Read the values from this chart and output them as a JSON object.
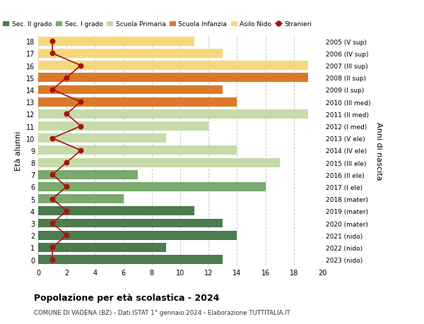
{
  "ages": [
    18,
    17,
    16,
    15,
    14,
    13,
    12,
    11,
    10,
    9,
    8,
    7,
    6,
    5,
    4,
    3,
    2,
    1,
    0
  ],
  "years": [
    "2005 (V sup)",
    "2006 (IV sup)",
    "2007 (III sup)",
    "2008 (II sup)",
    "2009 (I sup)",
    "2010 (III med)",
    "2011 (II med)",
    "2012 (I med)",
    "2013 (V ele)",
    "2014 (IV ele)",
    "2015 (III ele)",
    "2016 (II ele)",
    "2017 (I ele)",
    "2018 (mater)",
    "2019 (mater)",
    "2020 (mater)",
    "2021 (nido)",
    "2022 (nido)",
    "2023 (nido)"
  ],
  "bar_values": [
    13,
    9,
    14,
    13,
    11,
    6,
    16,
    7,
    17,
    14,
    9,
    12,
    19,
    14,
    13,
    19,
    19,
    13,
    11
  ],
  "bar_colors": [
    "#4a7c4e",
    "#4a7c4e",
    "#4a7c4e",
    "#4a7c4e",
    "#4a7c4e",
    "#7aaa6e",
    "#7aaa6e",
    "#7aaa6e",
    "#c5dba8",
    "#c5dba8",
    "#c5dba8",
    "#c5dba8",
    "#c5dba8",
    "#d97a2a",
    "#d97a2a",
    "#d97a2a",
    "#f5d87a",
    "#f5d87a",
    "#f5d87a"
  ],
  "stranieri": [
    1,
    1,
    2,
    1,
    2,
    1,
    2,
    1,
    2,
    3,
    1,
    3,
    2,
    3,
    1,
    2,
    3,
    1,
    1
  ],
  "legend_labels": [
    "Sec. II grado",
    "Sec. I grado",
    "Scuola Primaria",
    "Scuola Infanzia",
    "Asilo Nido",
    "Stranieri"
  ],
  "legend_colors": [
    "#4a7c4e",
    "#7aaa6e",
    "#c5dba8",
    "#d97a2a",
    "#f5d87a",
    "#aa1111"
  ],
  "ylabel_left": "Età alunni",
  "ylabel_right": "Anni di nascita",
  "title": "Popolazione per età scolastica - 2024",
  "subtitle": "COMUNE DI VADENA (BZ) - Dati ISTAT 1° gennaio 2024 - Elaborazione TUTTITALIA.IT",
  "xlim": [
    0,
    20
  ],
  "xticks": [
    0,
    2,
    4,
    6,
    8,
    10,
    12,
    14,
    16,
    18,
    20
  ],
  "stranieri_color": "#aa1111",
  "grid_color": "#cccccc",
  "bg_color": "#ffffff"
}
